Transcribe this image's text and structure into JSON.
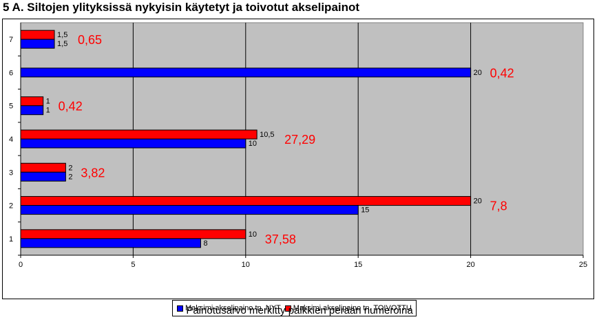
{
  "title": "5 A. Siltojen ylityksissä nykyisin käytetyt ja toivotut akselipainot",
  "caption": "Painotusarvo merkitty palkkien perään numeroina",
  "colors": {
    "nyt": "#0000ff",
    "toivottu": "#ff0000",
    "plot_bg": "#c0c0c0",
    "annotation": "#ff0000"
  },
  "chart_data": {
    "type": "bar",
    "orientation": "horizontal",
    "categories": [
      "1",
      "2",
      "3",
      "4",
      "5",
      "6",
      "7"
    ],
    "series": [
      {
        "name": "Maksimi akselipaino tn. NYT",
        "values": [
          8,
          15,
          2,
          10,
          1,
          20,
          1.5
        ],
        "labels": [
          "8",
          "15",
          "2",
          "10",
          "1",
          "20",
          "1,5"
        ]
      },
      {
        "name": "Maksimi akselipaino tn. TOIVOTTU",
        "values": [
          10,
          20,
          2,
          10.5,
          1,
          null,
          1.5
        ],
        "labels": [
          "10",
          "20",
          "2",
          "10,5",
          "1",
          "",
          "1,5"
        ]
      }
    ],
    "annotations": [
      "37,58",
      "7,8",
      "3,82",
      "27,29",
      "0,42",
      "0,42",
      "0,65"
    ],
    "xlim": [
      0,
      25
    ],
    "xticks": [
      "0",
      "5",
      "10",
      "15",
      "20",
      "25"
    ],
    "grid": true,
    "legend_position": "bottom"
  }
}
